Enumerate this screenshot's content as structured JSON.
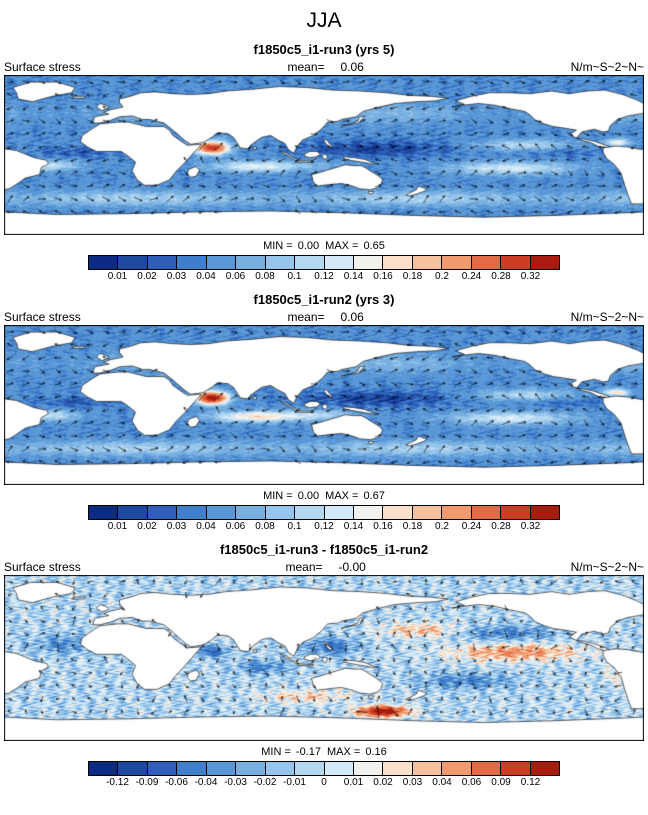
{
  "figure_title": "JJA",
  "chart_data": [
    {
      "type": "heatmap",
      "variable": "Surface stress",
      "title": "f1850c5_i1-run3 (yrs 5)",
      "mean_label": "mean=",
      "mean": "0.06",
      "units": "N/m~S~2~N~",
      "min_label": "MIN =",
      "min": "0.00",
      "max_label": "MAX =",
      "max": "0.65",
      "levels": [
        "0.01",
        "0.02",
        "0.03",
        "0.04",
        "0.06",
        "0.08",
        "0.1",
        "0.12",
        "0.14",
        "0.16",
        "0.18",
        "0.2",
        "0.24",
        "0.28",
        "0.32"
      ],
      "palette": [
        "#0c2c84",
        "#1d4a9e",
        "#2e5eb8",
        "#3f7ecb",
        "#5a97d6",
        "#77afe0",
        "#96c4ea",
        "#b5d8f1",
        "#d3e8f8",
        "#f2f2ec",
        "#fbe0ca",
        "#f7c09e",
        "#f09a6e",
        "#e26a44",
        "#cc3d27",
        "#a81c10"
      ],
      "overlay": "surface stress vector arrows"
    },
    {
      "type": "heatmap",
      "variable": "Surface stress",
      "title": "f1850c5_i1-run2 (yrs 3)",
      "mean_label": "mean=",
      "mean": "0.06",
      "units": "N/m~S~2~N~",
      "min_label": "MIN =",
      "min": "0.00",
      "max_label": "MAX =",
      "max": "0.67",
      "levels": [
        "0.01",
        "0.02",
        "0.03",
        "0.04",
        "0.06",
        "0.08",
        "0.1",
        "0.12",
        "0.14",
        "0.16",
        "0.18",
        "0.2",
        "0.24",
        "0.28",
        "0.32"
      ],
      "palette": [
        "#0c2c84",
        "#1d4a9e",
        "#2e5eb8",
        "#3f7ecb",
        "#5a97d6",
        "#77afe0",
        "#96c4ea",
        "#b5d8f1",
        "#d3e8f8",
        "#f2f2ec",
        "#fbe0ca",
        "#f7c09e",
        "#f09a6e",
        "#e26a44",
        "#cc3d27",
        "#a81c10"
      ],
      "overlay": "surface stress vector arrows"
    },
    {
      "type": "heatmap",
      "variable": "Surface stress",
      "title": "f1850c5_i1-run3 - f1850c5_i1-run2",
      "mean_label": "mean=",
      "mean": "-0.00",
      "units": "N/m~S~2~N~",
      "min_label": "MIN =",
      "min": "-0.17",
      "max_label": "MAX =",
      "max": "0.16",
      "levels": [
        "-0.12",
        "-0.09",
        "-0.06",
        "-0.04",
        "-0.03",
        "-0.02",
        "-0.01",
        "0",
        "0.01",
        "0.02",
        "0.03",
        "0.04",
        "0.06",
        "0.09",
        "0.12"
      ],
      "palette": [
        "#0c2c84",
        "#1d4a9e",
        "#2e5eb8",
        "#3f7ecb",
        "#5a97d6",
        "#77afe0",
        "#96c4ea",
        "#b5d8f1",
        "#d3e8f8",
        "#f2f2ec",
        "#fbe0ca",
        "#f7c09e",
        "#f09a6e",
        "#e26a44",
        "#cc3d27",
        "#a81c10"
      ],
      "overlay": "difference vector arrows"
    }
  ]
}
